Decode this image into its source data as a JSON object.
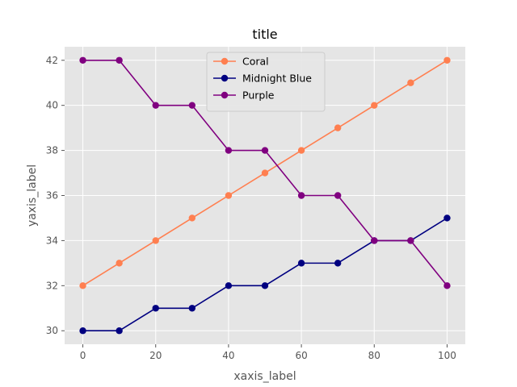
{
  "chart_data": {
    "type": "line",
    "title": "title",
    "xlabel": "xaxis_label",
    "ylabel": "yaxis_label",
    "x": [
      0,
      10,
      20,
      30,
      40,
      50,
      60,
      70,
      80,
      90,
      100
    ],
    "xlim": [
      -5,
      105
    ],
    "ylim": [
      29.4,
      42.6
    ],
    "xticks": [
      "0",
      "20",
      "40",
      "60",
      "80",
      "100"
    ],
    "yticks": [
      "30",
      "32",
      "34",
      "36",
      "38",
      "40",
      "42"
    ],
    "grid": true,
    "background": "#e5e5e5",
    "legend_position": "top-center",
    "series": [
      {
        "name": "Coral",
        "color": "#ff7f50",
        "values": [
          32,
          33,
          34,
          35,
          36,
          37,
          38,
          39,
          40,
          41,
          42
        ]
      },
      {
        "name": "Midnight Blue",
        "color": "#000080",
        "values": [
          30,
          30,
          31,
          31,
          32,
          32,
          33,
          33,
          34,
          34,
          35
        ]
      },
      {
        "name": "Purple",
        "color": "#800080",
        "values": [
          42,
          42,
          40,
          40,
          38,
          38,
          36,
          36,
          34,
          34,
          32
        ]
      }
    ]
  }
}
